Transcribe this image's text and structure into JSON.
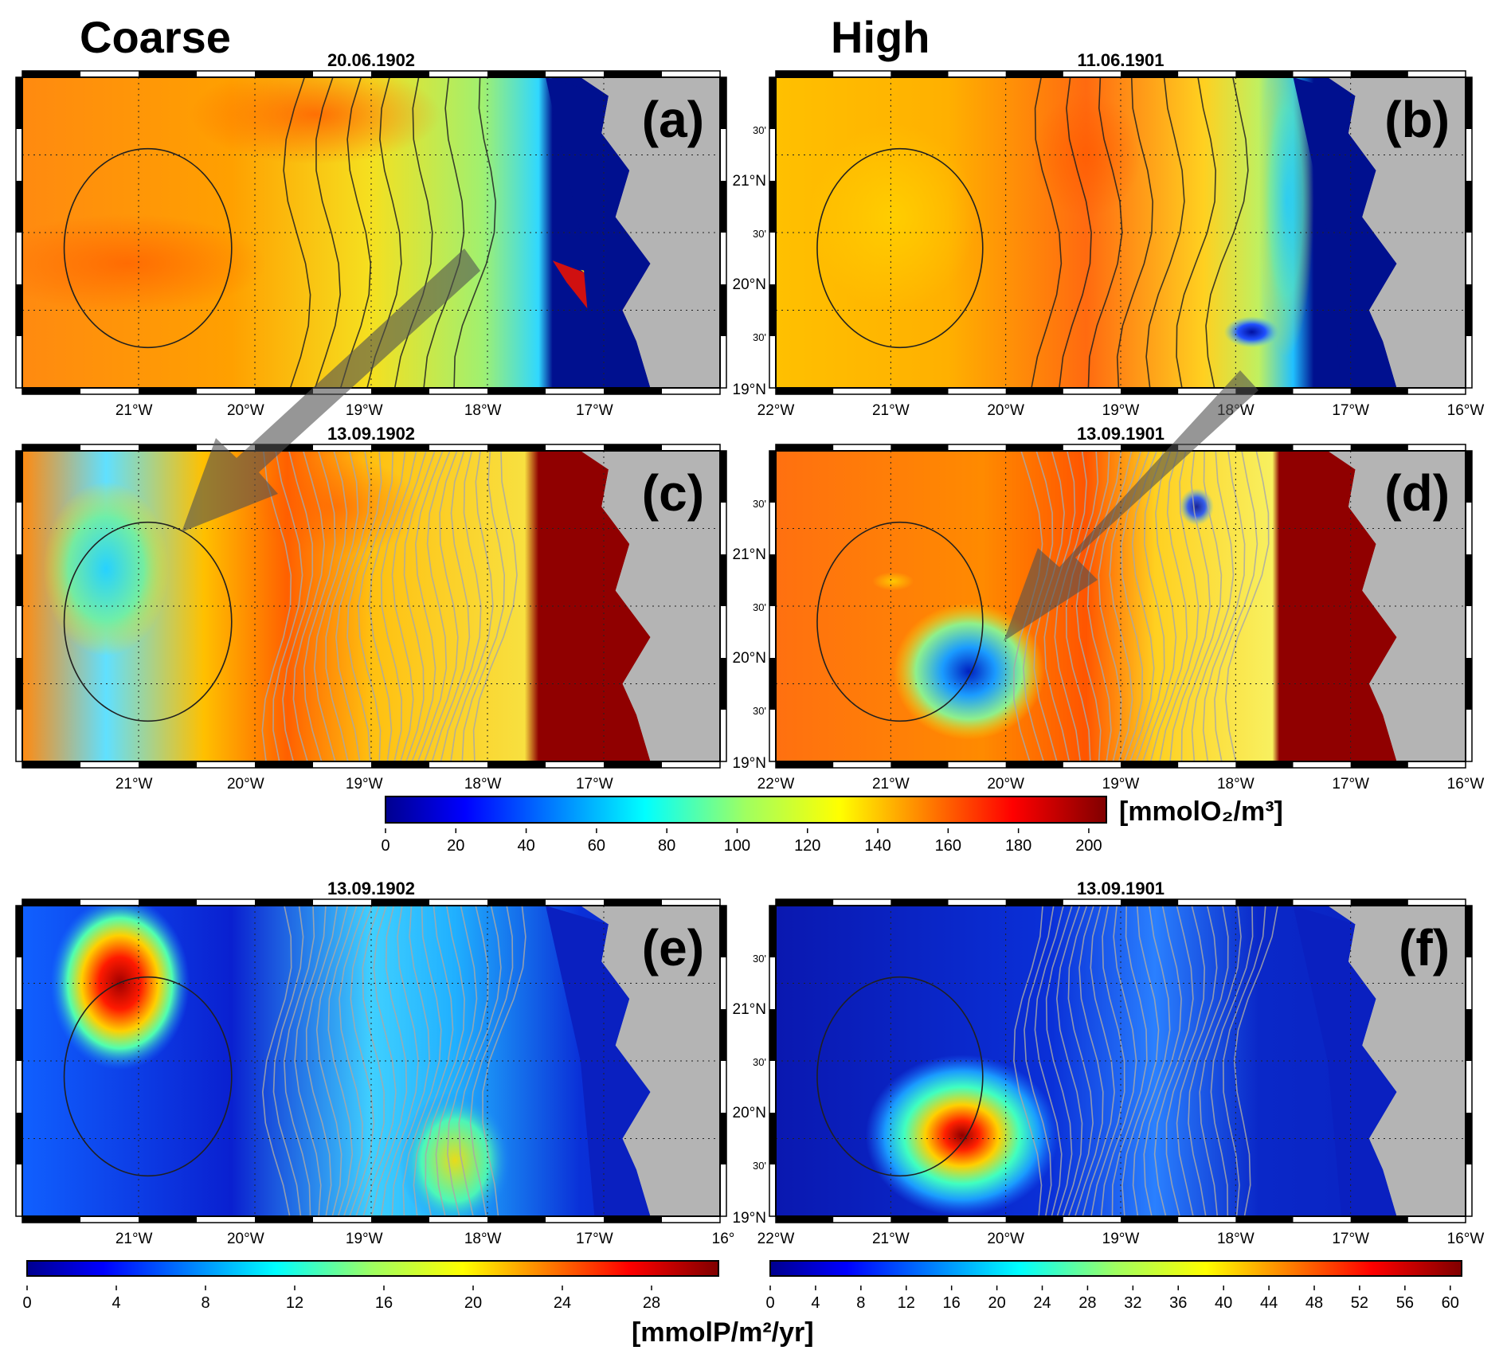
{
  "headers": {
    "coarse": "Coarse",
    "high": "High"
  },
  "panels": [
    {
      "id": "a",
      "label": "(a)",
      "date": "20.06.1902",
      "resolution": "coarse",
      "variable": "oxygen"
    },
    {
      "id": "b",
      "label": "(b)",
      "date": "11.06.1901",
      "resolution": "high",
      "variable": "oxygen"
    },
    {
      "id": "c",
      "label": "(c)",
      "date": "13.09.1902",
      "resolution": "coarse",
      "variable": "oxygen"
    },
    {
      "id": "d",
      "label": "(d)",
      "date": "13.09.1901",
      "resolution": "high",
      "variable": "oxygen"
    },
    {
      "id": "e",
      "label": "(e)",
      "date": "13.09.1902",
      "resolution": "coarse",
      "variable": "export"
    },
    {
      "id": "f",
      "label": "(f)",
      "date": "13.09.1901",
      "resolution": "high",
      "variable": "export"
    }
  ],
  "axes": {
    "coarse_lon": [
      "21°W",
      "20°W",
      "19°W",
      "18°W",
      "17°W"
    ],
    "coarse_lon_last_e": "16°",
    "high_lon": [
      "22°W",
      "21°W",
      "20°W",
      "19°W",
      "18°W",
      "17°W",
      "16°W"
    ],
    "high_lat": [
      "19°N",
      "30'",
      "20°N",
      "30'",
      "21°N",
      "30'"
    ]
  },
  "colorbars": {
    "oxygen": {
      "ticks": [
        "0",
        "20",
        "40",
        "60",
        "80",
        "100",
        "120",
        "140",
        "160",
        "180",
        "200"
      ],
      "unit": "[mmolO₂/m³]",
      "range": [
        0,
        205
      ]
    },
    "export_coarse": {
      "ticks": [
        "0",
        "4",
        "8",
        "12",
        "16",
        "20",
        "24",
        "28"
      ],
      "range": [
        0,
        31
      ]
    },
    "export_high": {
      "ticks": [
        "0",
        "4",
        "8",
        "12",
        "16",
        "20",
        "24",
        "28",
        "32",
        "36",
        "40",
        "44",
        "48",
        "52",
        "56",
        "60"
      ],
      "range": [
        0,
        61
      ]
    },
    "export_unit": "[mmolP/m²/yr]"
  },
  "colors": {
    "land": "#b4b4b4",
    "low": "#000090",
    "high": "#800000",
    "arrow": "#505050"
  }
}
